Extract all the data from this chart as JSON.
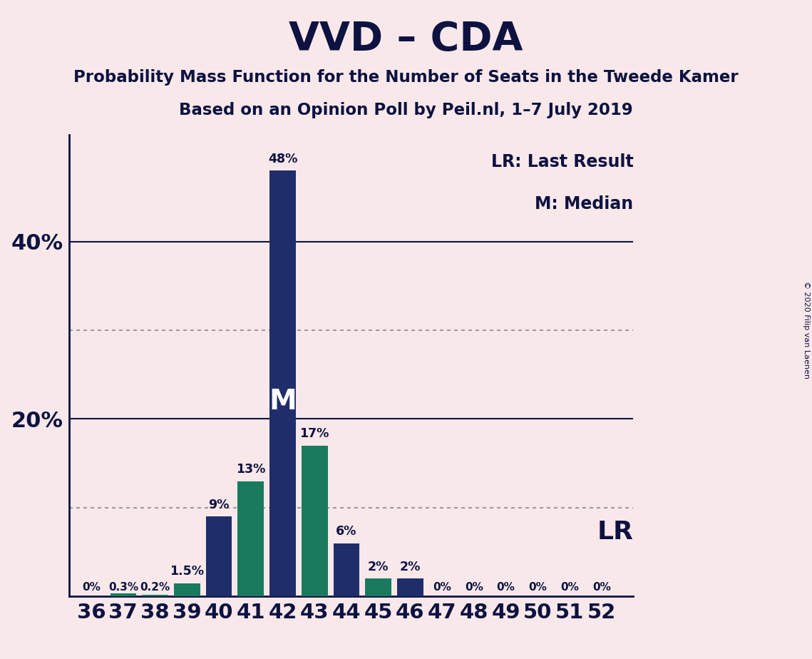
{
  "title": "VVD – CDA",
  "subtitle1": "Probability Mass Function for the Number of Seats in the Tweede Kamer",
  "subtitle2": "Based on an Opinion Poll by Peil.nl, 1–7 July 2019",
  "copyright": "© 2020 Filip van Laenen",
  "seats": [
    36,
    37,
    38,
    39,
    40,
    41,
    42,
    43,
    44,
    45,
    46,
    47,
    48,
    49,
    50,
    51,
    52
  ],
  "probabilities": [
    0.0,
    0.3,
    0.2,
    1.5,
    9.0,
    13.0,
    48.0,
    17.0,
    6.0,
    2.0,
    2.0,
    0.0,
    0.0,
    0.0,
    0.0,
    0.0,
    0.0
  ],
  "bar_labels": [
    "0%",
    "0.3%",
    "0.2%",
    "1.5%",
    "9%",
    "13%",
    "48%",
    "17%",
    "6%",
    "2%",
    "2%",
    "0%",
    "0%",
    "0%",
    "0%",
    "0%",
    "0%"
  ],
  "colors": {
    "navy": "#1f2d6b",
    "teal": "#1a7a5e",
    "background": "#f8e8ea",
    "axis_line": "#0d1240",
    "solid_gridline": "#0d1240",
    "dotted_gridline": "#888888"
  },
  "bar_colors": [
    "navy",
    "teal",
    "teal",
    "teal",
    "navy",
    "teal",
    "navy",
    "teal",
    "navy",
    "teal",
    "navy",
    "navy",
    "navy",
    "navy",
    "navy",
    "navy",
    "navy"
  ],
  "median_seat": 42,
  "lr_seat": 46,
  "solid_yticks": [
    20,
    40
  ],
  "dotted_yticks": [
    10,
    30
  ],
  "legend_lr": "LR: Last Result",
  "legend_m": "M: Median",
  "lr_label": "LR",
  "ymax": 52
}
